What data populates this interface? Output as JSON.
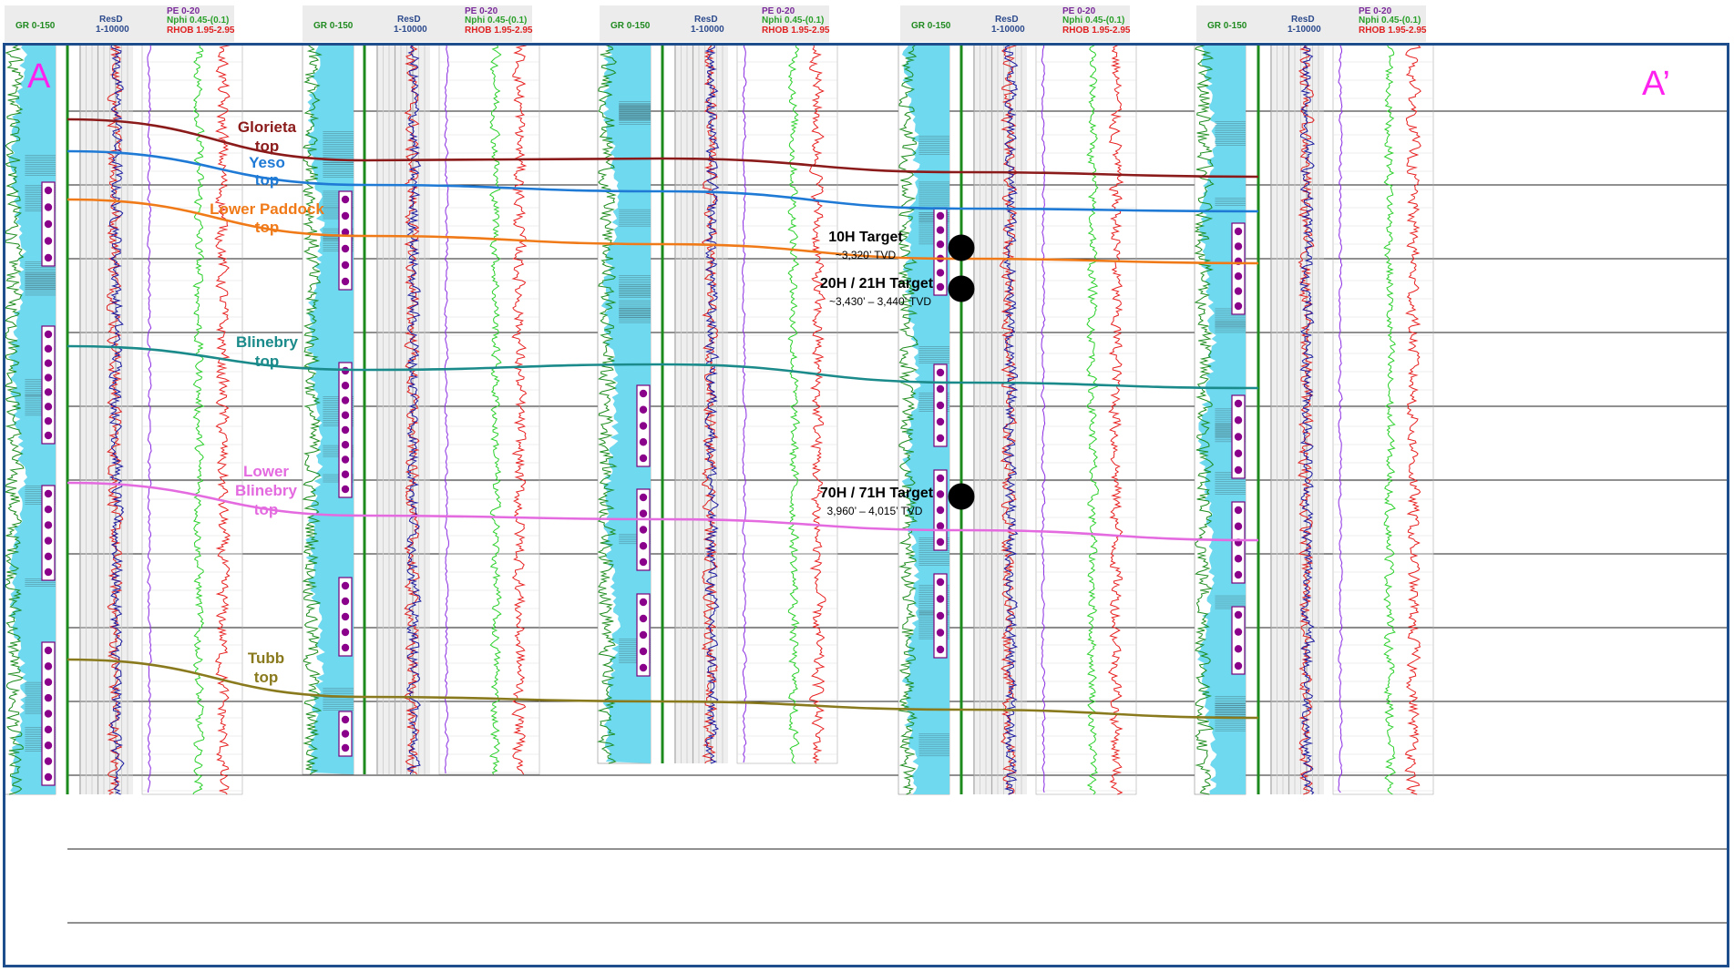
{
  "section": {
    "start_label": "A",
    "end_label": "A’"
  },
  "track_header": {
    "gr": "GR 0-150",
    "res_name": "ResD",
    "res_range": "1-10000",
    "pe": "PE 0-20",
    "nphi": "Nphi 0.45-(0.1)",
    "rhob": "RHOB 1.95-2.95"
  },
  "formation_tops": [
    {
      "name": "Glorieta",
      "suffix": "top",
      "color": "#8b1a1a"
    },
    {
      "name": "Yeso",
      "suffix": "top",
      "color": "#1f7ad6"
    },
    {
      "name": "Lower Paddock",
      "suffix": "top",
      "color": "#f07a18"
    },
    {
      "name": "Blinebry",
      "suffix": "top",
      "color": "#1b8a8a"
    },
    {
      "name": "Lower Blinebry",
      "suffix": "top",
      "color": "#e46ae0"
    },
    {
      "name": "Tubb",
      "suffix": "top",
      "color": "#8a7a1e"
    }
  ],
  "targets": [
    {
      "name": "10H Target",
      "depth": "~3,320’ TVD"
    },
    {
      "name": "20H / 21H Target",
      "depth": "~3,430’ – 3,440’ TVD"
    },
    {
      "name": "70H / 71H Target",
      "depth": "3,960’ – 4,015’ TVD"
    }
  ],
  "colors": {
    "frame": "#1f4e8c",
    "gr_fill": "#6fd9ef",
    "gr_curve": "#1e8c1e",
    "res_deep": "#1a1aa0",
    "res_shallow": "#e02020",
    "pe_curve": "#8a2be2",
    "nphi_curve": "#2ad02a",
    "rhob_curve": "#e82020",
    "perf_marker": "#8b008b",
    "section_label": "#ff22ee"
  }
}
